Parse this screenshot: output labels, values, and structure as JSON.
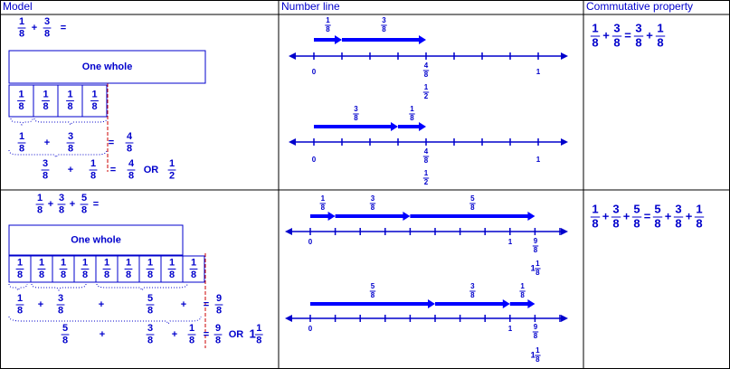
{
  "header": [
    "Model",
    "Number line",
    "Commutative property"
  ],
  "rows": [
    {
      "model": {
        "equation": [
          {
            "n": "1",
            "d": "8"
          },
          "+",
          {
            "n": "3",
            "d": "8"
          },
          "="
        ],
        "whole": "One whole",
        "parts": [
          {
            "n": "1",
            "d": "8"
          },
          {
            "n": "1",
            "d": "8"
          },
          {
            "n": "1",
            "d": "8"
          },
          {
            "n": "1",
            "d": "8"
          }
        ],
        "sum": [
          {
            "n": "1",
            "d": "8"
          },
          "+",
          {
            "n": "3",
            "d": "8"
          },
          "=",
          {
            "n": "4",
            "d": "8"
          }
        ],
        "swapped": [
          {
            "n": "3",
            "d": "8"
          },
          "+",
          {
            "n": "1",
            "d": "8"
          },
          "=",
          {
            "n": "4",
            "d": "8"
          },
          "OR",
          {
            "n": "1",
            "d": "2"
          }
        ]
      },
      "number_lines": [
        {
          "arrows": [
            {
              "n": "1",
              "d": "8"
            },
            {
              "n": "3",
              "d": "8"
            }
          ],
          "ticks": [
            "0",
            {
              "n": "4",
              "d": "8"
            },
            {
              "n": "1",
              "d": "2"
            },
            "1"
          ]
        },
        {
          "arrows": [
            {
              "n": "3",
              "d": "8"
            },
            {
              "n": "1",
              "d": "8"
            }
          ],
          "ticks": [
            "0",
            {
              "n": "4",
              "d": "8"
            },
            {
              "n": "1",
              "d": "2"
            },
            "1"
          ]
        }
      ],
      "commutative": [
        {
          "n": "1",
          "d": "8"
        },
        "+",
        {
          "n": "3",
          "d": "8"
        },
        "=",
        {
          "n": "3",
          "d": "8"
        },
        "+",
        {
          "n": "1",
          "d": "8"
        }
      ]
    },
    {
      "model": {
        "equation": [
          {
            "n": "1",
            "d": "8"
          },
          "+",
          {
            "n": "3",
            "d": "8"
          },
          "+",
          {
            "n": "5",
            "d": "8"
          },
          "="
        ],
        "whole": "One whole",
        "parts": [
          {
            "n": "1",
            "d": "8"
          },
          {
            "n": "1",
            "d": "8"
          },
          {
            "n": "1",
            "d": "8"
          },
          {
            "n": "1",
            "d": "8"
          },
          {
            "n": "1",
            "d": "8"
          },
          {
            "n": "1",
            "d": "8"
          },
          {
            "n": "1",
            "d": "8"
          },
          {
            "n": "1",
            "d": "8"
          },
          {
            "n": "1",
            "d": "8"
          }
        ],
        "sum": [
          {
            "n": "1",
            "d": "8"
          },
          "+",
          {
            "n": "3",
            "d": "8"
          },
          "+",
          {
            "n": "5",
            "d": "8"
          },
          "+",
          "=",
          {
            "n": "9",
            "d": "8"
          }
        ],
        "swapped": [
          {
            "n": "5",
            "d": "8"
          },
          "+",
          {
            "n": "3",
            "d": "8"
          },
          "+",
          {
            "n": "1",
            "d": "8"
          },
          "=",
          {
            "n": "9",
            "d": "8"
          },
          "OR",
          {
            "w": "1",
            "n": "1",
            "d": "8"
          }
        ]
      },
      "number_lines": [
        {
          "arrows": [
            {
              "n": "1",
              "d": "8"
            },
            {
              "n": "3",
              "d": "8"
            },
            {
              "n": "5",
              "d": "8"
            }
          ],
          "ticks": [
            "0",
            "1",
            {
              "n": "9",
              "d": "8"
            },
            {
              "w": "1",
              "n": "1",
              "d": "8"
            }
          ]
        },
        {
          "arrows": [
            {
              "n": "5",
              "d": "8"
            },
            {
              "n": "3",
              "d": "8"
            },
            {
              "n": "1",
              "d": "8"
            }
          ],
          "ticks": [
            "0",
            "1",
            {
              "n": "9",
              "d": "8"
            },
            {
              "w": "1",
              "n": "1",
              "d": "8"
            }
          ]
        }
      ],
      "commutative": [
        {
          "n": "1",
          "d": "8"
        },
        "+",
        {
          "n": "3",
          "d": "8"
        },
        "+",
        {
          "n": "5",
          "d": "8"
        },
        "=",
        {
          "n": "5",
          "d": "8"
        },
        "+",
        {
          "n": "3",
          "d": "8"
        },
        "+",
        {
          "n": "1",
          "d": "8"
        }
      ]
    }
  ]
}
